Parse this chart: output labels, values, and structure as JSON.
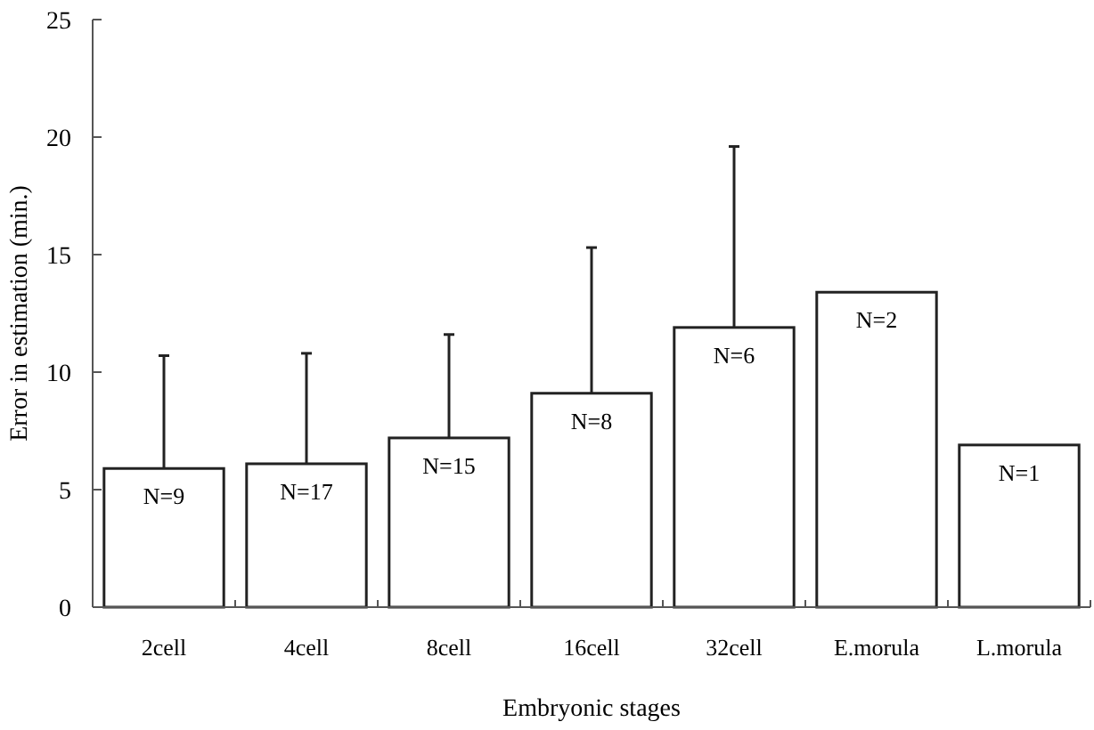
{
  "chart_data": {
    "type": "bar",
    "xlabel": "Embryonic stages",
    "ylabel": "Error in estimation (min.)",
    "categories": [
      "2cell",
      "4cell",
      "8cell",
      "16cell",
      "32cell",
      "E.morula",
      "L.morula"
    ],
    "values": [
      5.9,
      6.1,
      7.2,
      9.1,
      11.9,
      13.4,
      6.9
    ],
    "errors": [
      [
        5.9,
        10.7
      ],
      [
        6.1,
        10.8
      ],
      [
        7.2,
        11.6
      ],
      [
        9.1,
        15.3
      ],
      [
        11.9,
        19.6
      ],
      null,
      null
    ],
    "annotations": [
      {
        "text": "N=9",
        "x": "2cell",
        "y": 5.9
      },
      {
        "text": "N=17",
        "x": "4cell",
        "y": 6.1
      },
      {
        "text": "N=15",
        "x": "8cell",
        "y": 7.2
      },
      {
        "text": "N=8",
        "x": "16cell",
        "y": 9.1
      },
      {
        "text": "N=6",
        "x": "32cell",
        "y": 11.9
      },
      {
        "text": "N=2",
        "x": "E.morula",
        "y": 13.4
      },
      {
        "text": "N=1",
        "x": "L.morula",
        "y": 6.9
      }
    ],
    "color": "#ffffff",
    "ylim": [
      0,
      25
    ],
    "yticks": [
      0,
      5,
      10,
      15,
      20,
      25
    ],
    "grid": false
  }
}
